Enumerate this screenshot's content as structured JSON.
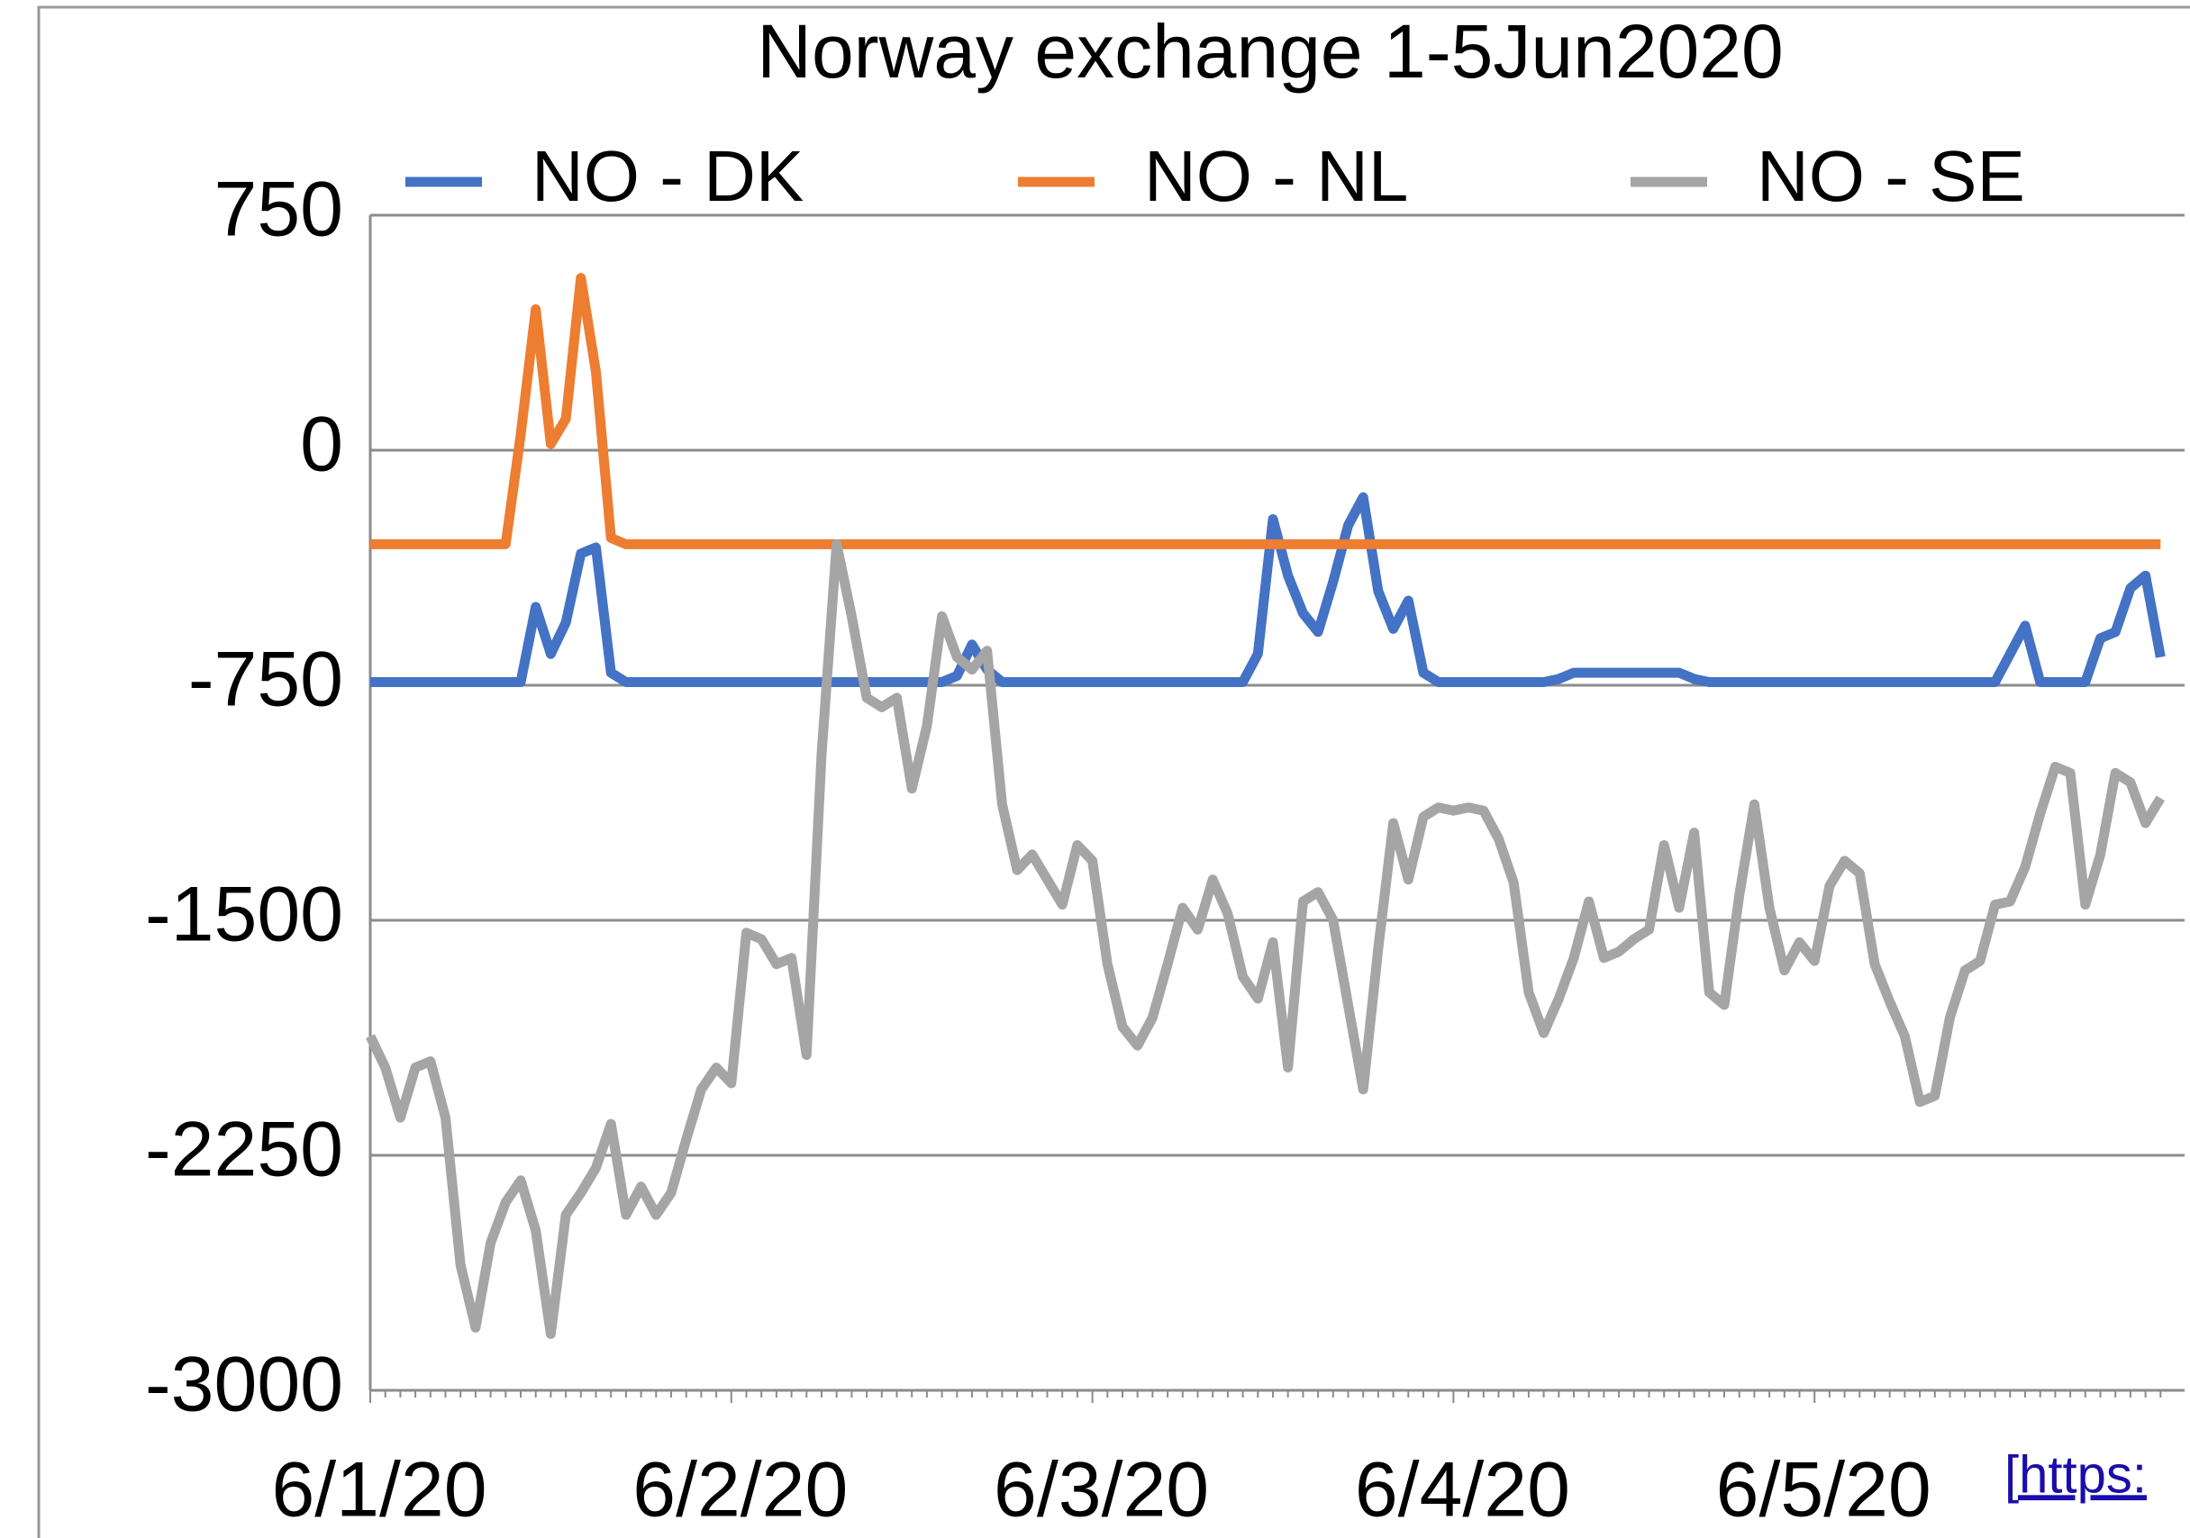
{
  "chart_data": {
    "type": "line",
    "title": "Norway exchange 1-5Jun2020",
    "categories": [
      "6/1/20",
      null,
      null,
      null,
      null,
      null,
      null,
      null,
      null,
      null,
      null,
      null,
      null,
      null,
      null,
      null,
      null,
      null,
      null,
      null,
      null,
      null,
      null,
      null,
      "6/2/20",
      null,
      null,
      null,
      null,
      null,
      null,
      null,
      null,
      null,
      null,
      null,
      null,
      null,
      null,
      null,
      null,
      null,
      null,
      null,
      null,
      null,
      null,
      null,
      "6/3/20",
      null,
      null,
      null,
      null,
      null,
      null,
      null,
      null,
      null,
      null,
      null,
      null,
      null,
      null,
      null,
      null,
      null,
      null,
      null,
      null,
      null,
      null,
      null,
      "6/4/20",
      null,
      null,
      null,
      null,
      null,
      null,
      null,
      null,
      null,
      null,
      null,
      null,
      null,
      null,
      null,
      null,
      null,
      null,
      null,
      null,
      null,
      null,
      null,
      "6/5/20",
      null,
      null,
      null,
      null,
      null,
      null,
      null,
      null,
      null,
      null,
      null,
      null,
      null,
      null,
      null,
      null,
      null,
      null,
      null,
      null,
      null,
      null,
      null
    ],
    "series": [
      {
        "name": "NO - DK",
        "color": "#4472c4",
        "values": [
          -740,
          -740,
          -740,
          -740,
          -740,
          -740,
          -740,
          -740,
          -740,
          -740,
          -740,
          -500,
          -650,
          -550,
          -330,
          -310,
          -710,
          -740,
          -740,
          -740,
          -740,
          -740,
          -740,
          -740,
          -740,
          -740,
          -740,
          -740,
          -740,
          -740,
          -740,
          -740,
          -740,
          -740,
          -740,
          -740,
          -740,
          -740,
          -740,
          -720,
          -620,
          -700,
          -740,
          -740,
          -740,
          -740,
          -740,
          -740,
          -740,
          -740,
          -740,
          -740,
          -740,
          -740,
          -740,
          -740,
          -740,
          -740,
          -740,
          -650,
          -220,
          -400,
          -520,
          -580,
          -420,
          -240,
          -150,
          -450,
          -570,
          -480,
          -710,
          -740,
          -740,
          -740,
          -740,
          -740,
          -740,
          -740,
          -740,
          -730,
          -710,
          -710,
          -710,
          -710,
          -710,
          -710,
          -710,
          -710,
          -730,
          -740,
          -740,
          -740,
          -740,
          -740,
          -740,
          -740,
          -740,
          -740,
          -740,
          -740,
          -740,
          -740,
          -740,
          -740,
          -740,
          -740,
          -740,
          -740,
          -740,
          -650,
          -560,
          -740,
          -740,
          -740,
          -740,
          -600,
          -580,
          -440,
          -400,
          -660
        ]
      },
      {
        "name": "NO - NL",
        "color": "#ed7d31",
        "values": [
          -300,
          -300,
          -300,
          -300,
          -300,
          -300,
          -300,
          -300,
          -300,
          -300,
          50,
          450,
          20,
          100,
          550,
          250,
          -280,
          -300,
          -300,
          -300,
          -300,
          -300,
          -300,
          -300,
          -300,
          -300,
          -300,
          -300,
          -300,
          -300,
          -300,
          -300,
          -300,
          -300,
          -300,
          -300,
          -300,
          -300,
          -300,
          -300,
          -300,
          -300,
          -300,
          -300,
          -300,
          -300,
          -300,
          -300,
          -300,
          -300,
          -300,
          -300,
          -300,
          -300,
          -300,
          -300,
          -300,
          -300,
          -300,
          -300,
          -300,
          -300,
          -300,
          -300,
          -300,
          -300,
          -300,
          -300,
          -300,
          -300,
          -300,
          -300,
          -300,
          -300,
          -300,
          -300,
          -300,
          -300,
          -300,
          -300,
          -300,
          -300,
          -300,
          -300,
          -300,
          -300,
          -300,
          -300,
          -300,
          -300,
          -300,
          -300,
          -300,
          -300,
          -300,
          -300,
          -300,
          -300,
          -300,
          -300,
          -300,
          -300,
          -300,
          -300,
          -300,
          -300,
          -300,
          -300,
          -300,
          -300,
          -300,
          -300,
          -300,
          -300,
          -300,
          -300,
          -300,
          -300,
          -300,
          -300
        ]
      },
      {
        "name": "NO - SE",
        "color": "#a5a5a5",
        "values": [
          -1870,
          -1970,
          -2130,
          -1970,
          -1950,
          -2130,
          -2600,
          -2800,
          -2530,
          -2400,
          -2330,
          -2490,
          -2820,
          -2440,
          -2370,
          -2290,
          -2150,
          -2440,
          -2350,
          -2440,
          -2370,
          -2200,
          -2040,
          -1970,
          -2020,
          -1540,
          -1560,
          -1640,
          -1620,
          -1930,
          -970,
          -300,
          -530,
          -790,
          -820,
          -790,
          -1080,
          -880,
          -530,
          -660,
          -700,
          -640,
          -1130,
          -1340,
          -1290,
          -1370,
          -1450,
          -1260,
          -1310,
          -1640,
          -1840,
          -1900,
          -1810,
          -1640,
          -1460,
          -1530,
          -1370,
          -1480,
          -1680,
          -1750,
          -1570,
          -1970,
          -1440,
          -1410,
          -1500,
          -1770,
          -2040,
          -1590,
          -1190,
          -1370,
          -1170,
          -1140,
          -1150,
          -1140,
          -1150,
          -1240,
          -1380,
          -1730,
          -1860,
          -1750,
          -1620,
          -1440,
          -1620,
          -1600,
          -1560,
          -1530,
          -1260,
          -1460,
          -1220,
          -1730,
          -1770,
          -1420,
          -1130,
          -1460,
          -1660,
          -1570,
          -1630,
          -1390,
          -1310,
          -1350,
          -1640,
          -1760,
          -1870,
          -2080,
          -2060,
          -1810,
          -1660,
          -1630,
          -1450,
          -1440,
          -1330,
          -1160,
          -1010,
          -1030,
          -1450,
          -1290,
          -1030,
          -1060,
          -1190,
          -1110
        ]
      }
    ],
    "ylim": [
      -3000,
      750
    ],
    "yticks": [
      -3000,
      -2250,
      -1500,
      -750,
      0,
      750
    ],
    "grid": true,
    "legend": "top",
    "annotation": "[https:"
  }
}
